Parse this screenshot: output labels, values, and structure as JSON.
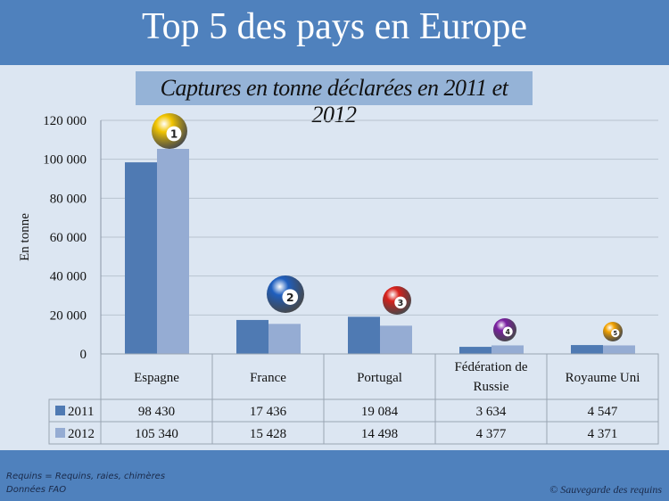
{
  "header": {
    "title": "Top 5 des pays en Europe"
  },
  "footer": {
    "note1": "Requins = Requins, raies, chimères",
    "note2": "Données FAO",
    "copyright": "© Sauvegarde des requins"
  },
  "colors": {
    "banner": "#4f81bd",
    "background": "#dce6f2",
    "series2011": "#4f7ab3",
    "series2012": "#95acd3"
  },
  "chart_data": {
    "type": "bar",
    "title": "Captures en tonne déclarées en 2011 et 2012",
    "ylabel": "En tonne",
    "ylim": [
      0,
      120000
    ],
    "yticks": [
      "0",
      "20 000",
      "40 000",
      "60 000",
      "80 000",
      "100 000",
      "120 000"
    ],
    "grid": true,
    "categories": [
      "Espagne",
      "France",
      "Portugal",
      "Fédération de Russie",
      "Royaume Uni"
    ],
    "rank_balls": [
      {
        "rank": "1",
        "color": "#f2c500"
      },
      {
        "rank": "2",
        "color": "#1f5fbf"
      },
      {
        "rank": "3",
        "color": "#d9201b"
      },
      {
        "rank": "4",
        "color": "#7b1fa2"
      },
      {
        "rank": "5",
        "color": "#f5a400"
      }
    ],
    "series": [
      {
        "name": "2011",
        "values": [
          98430,
          17436,
          19084,
          3634,
          4547
        ],
        "labels": [
          "98 430",
          "17 436",
          "19 084",
          "3 634",
          "4 547"
        ]
      },
      {
        "name": "2012",
        "values": [
          105340,
          15428,
          14498,
          4377,
          4371
        ],
        "labels": [
          "105 340",
          "15 428",
          "14 498",
          "4 377",
          "4 371"
        ]
      }
    ]
  }
}
